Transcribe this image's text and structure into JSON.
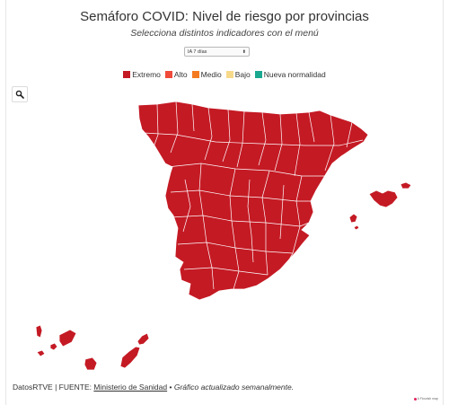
{
  "title": "Semáforo COVID: Nivel de riesgo por provincias",
  "subtitle": "Selecciona distintos indicadores con el menú",
  "indicator_select": {
    "value": "IA 7 días"
  },
  "legend": [
    {
      "label": "Extremo",
      "color": "#c41a24"
    },
    {
      "label": "Alto",
      "color": "#f04a3a"
    },
    {
      "label": "Medio",
      "color": "#f47a20"
    },
    {
      "label": "Bajo",
      "color": "#f7d98a"
    },
    {
      "label": "Nueva normalidad",
      "color": "#1aa88f"
    }
  ],
  "map": {
    "fill_color": "#c41a24",
    "border_color": "#ffffff"
  },
  "footer": {
    "source_prefix": "DatosRTVE | FUENTE: ",
    "source_link": "Ministerio de Sanidad",
    "bullet": " • ",
    "note": "Gráfico actualizado semanalmente."
  },
  "credit": {
    "text": "A Flourish map",
    "dot_color": "#e0245e"
  }
}
